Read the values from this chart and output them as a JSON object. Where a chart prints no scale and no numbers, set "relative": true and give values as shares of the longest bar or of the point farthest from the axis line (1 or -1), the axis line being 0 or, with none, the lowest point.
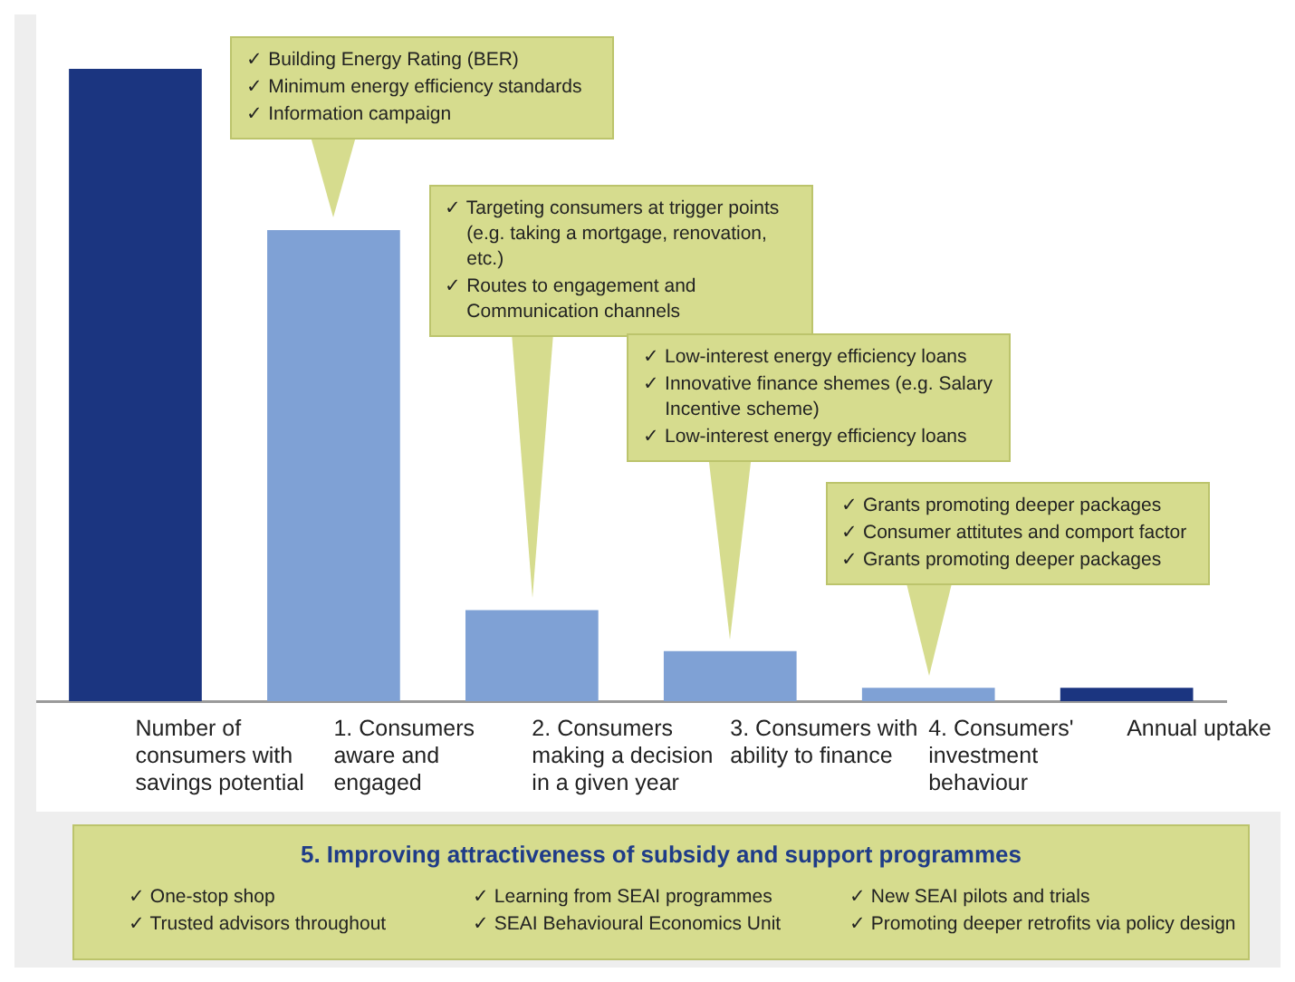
{
  "chart_data": {
    "type": "bar",
    "relative": true,
    "categories": [
      "Number of consumers with savings potential",
      "1. Consumers aware and engaged",
      "2. Consumers making a decision in a given year",
      "3. Consumers with ability to finance",
      "4. Consumers' investment behaviour",
      "Annual uptake"
    ],
    "values": [
      1,
      0.745,
      0.144,
      0.079,
      0.021,
      0.021
    ],
    "colors": [
      "#1b3580",
      "#7fa1d5",
      "#7fa1d5",
      "#7fa1d5",
      "#7fa1d5",
      "#1b3580"
    ],
    "grid": false,
    "legend": false,
    "annotations": [
      "✓ Building Energy Rating (BER)\n✓ Minimum energy efficiency standards\n✓ Information campaign",
      "✓ Targeting consumers at trigger points (e.g. taking a mortgage, renovation, etc.)\n✓ Routes to engagement and Communication channels",
      "✓ Low-interest energy efficiency loans\n✓ Innovative finance shemes (e.g. Salary Incentive scheme)\n✓ Low-interest energy efficiency loans",
      "✓ Grants promoting deeper packages\n✓ Consumer attitutes and comport factor\n✓ Grants promoting deeper packages",
      "5.  Improving attractiveness of subsidy and support programmes",
      "✓ One-stop shop",
      "✓ Learning from SEAI programmes",
      "✓ New SEAI pilots and trials",
      "✓ Trusted advisors throughout",
      "✓ SEAI Behavioural Economics Unit",
      "✓ Promoting deeper retrofits via policy design"
    ]
  }
}
